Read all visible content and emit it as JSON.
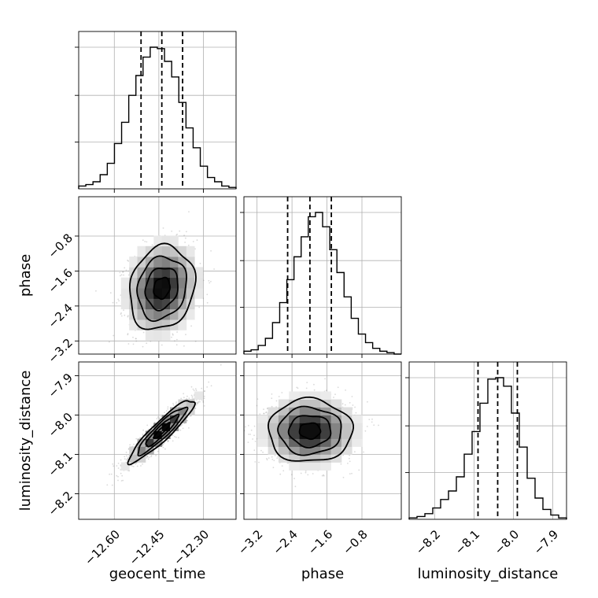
{
  "chart_data": {
    "type": "corner",
    "parameters": [
      "geocent_time",
      "phase",
      "luminosity_distance"
    ],
    "axes": {
      "geocent_time": {
        "label": "geocent_time",
        "range": [
          -12.72,
          -12.19
        ],
        "ticks": [
          -12.6,
          -12.45,
          -12.3
        ],
        "tick_labels": [
          "−12.60",
          "−12.45",
          "−12.30"
        ],
        "mean": -12.44,
        "std": 0.055,
        "quantiles": [
          -12.51,
          -12.44,
          -12.37
        ]
      },
      "phase": {
        "label": "phase",
        "range": [
          -3.5,
          0.1
        ],
        "ticks": [
          -3.2,
          -2.4,
          -1.6,
          -0.8
        ],
        "tick_labels": [
          "−3.2",
          "−2.4",
          "−1.6",
          "−0.8"
        ],
        "mean": -1.99,
        "std": 0.48,
        "quantiles": [
          -2.5,
          -1.99,
          -1.5
        ]
      },
      "luminosity_distance": {
        "label": "luminosity_distance",
        "range": [
          -8.265,
          -7.865
        ],
        "ticks": [
          -8.2,
          -8.1,
          -8.0,
          -7.9
        ],
        "tick_labels": [
          "−8.2",
          "−8.1",
          "−8.0",
          "−7.9"
        ],
        "mean": -8.04,
        "std": 0.04,
        "quantiles": [
          -8.09,
          -8.04,
          -7.99
        ]
      }
    },
    "histograms": {
      "geocent_time": [
        2,
        3,
        5,
        10,
        18,
        32,
        47,
        66,
        80,
        93,
        100,
        99,
        90,
        79,
        61,
        43,
        29,
        16,
        8,
        5,
        2,
        1
      ],
      "phase": [
        2,
        3,
        6,
        11,
        22,
        36,
        52,
        68,
        82,
        96,
        99,
        89,
        73,
        57,
        40,
        25,
        14,
        8,
        4,
        2,
        1,
        0
      ],
      "luminosity_distance": [
        1,
        2,
        4,
        8,
        14,
        20,
        30,
        46,
        62,
        82,
        99,
        100,
        94,
        75,
        51,
        29,
        15,
        7,
        3,
        1
      ]
    },
    "correlations": {
      "phase_vs_geocent_time": 0.15,
      "luminosity_distance_vs_geocent_time": 0.92,
      "luminosity_distance_vs_phase": 0.0
    },
    "contour_levels_sigma": [
      0.5,
      1.0,
      1.5,
      2.0
    ],
    "grid": true
  }
}
